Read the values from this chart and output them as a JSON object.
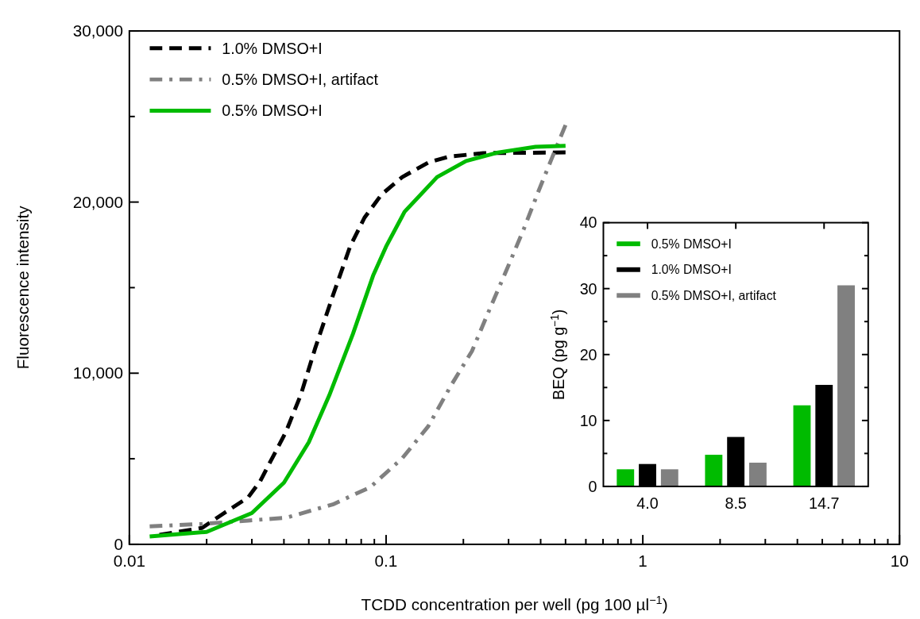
{
  "chart_data": [
    {
      "type": "line",
      "xlabel": "TCDD concentration per well (pg 100 µl$^{−1}$)",
      "ylabel": "Fluorescence intensity",
      "log": "x",
      "xlim": [
        0.01,
        10
      ],
      "ylim": [
        0,
        30000
      ],
      "xticks": [
        0.01,
        {
          "value": 0.02,
          "label": null
        },
        {
          "value": 0.03,
          "label": null
        },
        {
          "value": 0.04,
          "label": null
        },
        {
          "value": 0.05,
          "label": null
        },
        {
          "value": 0.06,
          "label": null
        },
        {
          "value": 0.07,
          "label": null
        },
        {
          "value": 0.08,
          "label": null
        },
        {
          "value": 0.09,
          "label": null
        },
        0.1,
        {
          "value": 0.2,
          "label": null
        },
        {
          "value": 0.3,
          "label": null
        },
        {
          "value": 0.4,
          "label": null
        },
        {
          "value": 0.5,
          "label": null
        },
        {
          "value": 0.6,
          "label": null
        },
        {
          "value": 0.7,
          "label": null
        },
        {
          "value": 0.8,
          "label": null
        },
        {
          "value": 0.9,
          "label": null
        },
        1,
        {
          "value": 2,
          "label": null
        },
        {
          "value": 3,
          "label": null
        },
        {
          "value": 4,
          "label": null
        },
        {
          "value": 5,
          "label": null
        },
        {
          "value": 6,
          "label": null
        },
        {
          "value": 7,
          "label": null
        },
        {
          "value": 8,
          "label": null
        },
        {
          "value": 9,
          "label": null
        },
        10
      ],
      "yticks": [
        0,
        {
          "value": 5000,
          "label": null
        },
        {
          "value": 10000,
          "label": "10,000"
        },
        {
          "value": 15000,
          "label": null
        },
        {
          "value": 20000,
          "label": "20,000"
        },
        {
          "value": 25000,
          "label": null
        },
        {
          "value": 30000,
          "label": "30,000"
        }
      ],
      "legend": "top left",
      "grid": false,
      "series": [
        {
          "name": "1.0% DMSO+I",
          "color": "#000000",
          "line_style": "dashed",
          "x": [
            0.0131,
            0.0192,
            0.0234,
            0.029,
            0.0323,
            0.0407,
            0.0466,
            0.053,
            0.062,
            0.0724,
            0.0824,
            0.096,
            0.1156,
            0.146,
            0.175,
            0.239,
            0.5
          ],
          "values": [
            550,
            960,
            1830,
            2740,
            3680,
            6560,
            8760,
            11480,
            14520,
            17400,
            19090,
            20440,
            21460,
            22310,
            22650,
            22860,
            22900
          ]
        },
        {
          "name": "0.5% DMSO+I, artifact",
          "color": "#808080",
          "line_style": "dashdot",
          "x": [
            0.012,
            0.0192,
            0.029,
            0.0407,
            0.062,
            0.0868,
            0.1156,
            0.146,
            0.179,
            0.216,
            0.252,
            0.295,
            0.344,
            0.392,
            0.44,
            0.5
          ],
          "values": [
            1050,
            1190,
            1390,
            1550,
            2330,
            3340,
            5030,
            6900,
            9280,
            11290,
            13670,
            16050,
            18430,
            20620,
            22480,
            24500
          ]
        },
        {
          "name": "0.5% DMSO+I",
          "color": "#00bb00",
          "line_style": "solid",
          "x": [
            0.012,
            0.02,
            0.03,
            0.04,
            0.05,
            0.06,
            0.0743,
            0.089,
            0.1,
            0.118,
            0.158,
            0.205,
            0.273,
            0.382,
            0.5
          ],
          "values": [
            460,
            730,
            1830,
            3600,
            5970,
            8690,
            12300,
            15700,
            17400,
            19430,
            21460,
            22400,
            22900,
            23230,
            23290
          ]
        }
      ]
    },
    {
      "type": "bar",
      "ylabel": "BEQ (pg g$^{−1}$)",
      "categories": [
        "4.0",
        "8.5",
        "14.7"
      ],
      "ylim": [
        0,
        40
      ],
      "yticks": [
        0,
        {
          "value": 5,
          "label": null
        },
        10,
        {
          "value": 15,
          "label": null
        },
        20,
        {
          "value": 25,
          "label": null
        },
        30,
        {
          "value": 35,
          "label": null
        },
        40
      ],
      "legend": "top left",
      "grid": false,
      "series": [
        {
          "name": "0.5% DMSO+I",
          "color": "#00bb00",
          "values": [
            2.6,
            4.8,
            12.3
          ]
        },
        {
          "name": "1.0% DMSO+I",
          "color": "#000000",
          "values": [
            3.4,
            7.5,
            15.4
          ]
        },
        {
          "name": "0.5% DMSO+I, artifact",
          "color": "#808080",
          "values": [
            2.6,
            3.6,
            30.5
          ]
        }
      ]
    }
  ]
}
